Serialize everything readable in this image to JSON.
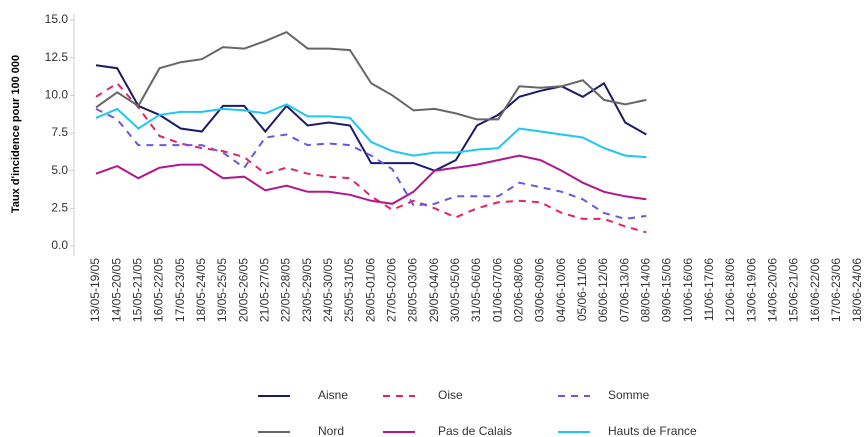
{
  "chart_data": {
    "type": "line",
    "y_label": "Taux d'incidence pour 100 000",
    "categories": [
      "13/05-19/05",
      "14/05-20/05",
      "15/05-21/05",
      "16/05-22/05",
      "17/05-23/05",
      "18/05-24/05",
      "19/05-25/05",
      "20/05-26/05",
      "21/05-27/05",
      "22/05-28/05",
      "23/05-29/05",
      "24/05-30/05",
      "25/05-31/05",
      "26/05-01/06",
      "27/05-02/06",
      "28/05-03/06",
      "29/05-04/06",
      "30/05-05/06",
      "31/05-06/06",
      "01/06-07/06",
      "02/06-08/06",
      "03/06-09/06",
      "04/06-10/06",
      "05/06-11/06",
      "06/06-12/06",
      "07/06-13/06",
      "08/06-14/06",
      "09/06-15/06",
      "10/06-16/06",
      "11/06-17/06",
      "12/06-18/06",
      "13/06-19/06",
      "14/06-20/06",
      "15/06-21/06",
      "16/06-22/06",
      "17/06-23/06",
      "18/06-24/06"
    ],
    "series": [
      {
        "name": "Aisne",
        "color": "#1c1a6b",
        "dashed": false,
        "values": [
          12.0,
          11.8,
          9.3,
          8.7,
          7.8,
          7.6,
          9.3,
          9.3,
          7.6,
          9.3,
          8.0,
          8.2,
          8.0,
          5.5,
          5.5,
          5.5,
          5.0,
          5.7,
          8.0,
          8.7,
          9.9,
          10.3,
          10.6,
          9.9,
          10.8,
          8.2,
          7.4,
          null,
          null,
          null,
          null,
          null,
          null,
          null,
          null,
          null,
          null
        ]
      },
      {
        "name": "Oise",
        "color": "#e2245f",
        "dashed": true,
        "values": [
          9.9,
          10.8,
          9.2,
          7.3,
          6.8,
          6.5,
          6.3,
          5.9,
          4.8,
          5.2,
          4.8,
          4.6,
          4.5,
          3.3,
          2.4,
          3.0,
          2.5,
          1.9,
          2.5,
          2.9,
          3.0,
          2.9,
          2.2,
          1.8,
          1.8,
          1.3,
          0.9,
          null,
          null,
          null,
          null,
          null,
          null,
          null,
          null,
          null,
          null
        ]
      },
      {
        "name": "Somme",
        "color": "#6a56e4",
        "dashed": true,
        "values": [
          9.1,
          8.4,
          6.7,
          6.7,
          6.7,
          6.7,
          6.2,
          5.2,
          7.2,
          7.4,
          6.7,
          6.8,
          6.7,
          6.0,
          5.1,
          2.7,
          2.8,
          3.3,
          3.3,
          3.3,
          4.2,
          3.9,
          3.6,
          3.1,
          2.2,
          1.8,
          2.0,
          null,
          null,
          null,
          null,
          null,
          null,
          null,
          null,
          null,
          null
        ]
      },
      {
        "name": "Nord",
        "color": "#666666",
        "dashed": false,
        "values": [
          9.2,
          10.2,
          9.3,
          11.8,
          12.2,
          12.4,
          13.2,
          13.1,
          13.6,
          14.2,
          13.1,
          13.1,
          13.0,
          10.8,
          10.0,
          9.0,
          9.1,
          8.8,
          8.4,
          8.4,
          10.6,
          10.5,
          10.6,
          11.0,
          9.7,
          9.4,
          9.7,
          null,
          null,
          null,
          null,
          null,
          null,
          null,
          null,
          null,
          null
        ]
      },
      {
        "name": "Pas de Calais",
        "color": "#b0178d",
        "dashed": false,
        "values": [
          4.8,
          5.3,
          4.5,
          5.2,
          5.4,
          5.4,
          4.5,
          4.6,
          3.7,
          4.0,
          3.6,
          3.6,
          3.4,
          3.0,
          2.8,
          3.6,
          5.0,
          5.2,
          5.4,
          5.7,
          6.0,
          5.7,
          5.0,
          4.2,
          3.6,
          3.3,
          3.1,
          null,
          null,
          null,
          null,
          null,
          null,
          null,
          null,
          null,
          null
        ]
      },
      {
        "name": "Hauts de France",
        "color": "#1ec6f1",
        "dashed": false,
        "values": [
          8.5,
          9.1,
          7.8,
          8.7,
          8.9,
          8.9,
          9.1,
          9.0,
          8.8,
          9.4,
          8.6,
          8.6,
          8.5,
          6.9,
          6.3,
          6.0,
          6.2,
          6.2,
          6.4,
          6.5,
          7.8,
          7.6,
          7.4,
          7.2,
          6.5,
          6.0,
          5.9,
          null,
          null,
          null,
          null,
          null,
          null,
          null,
          null,
          null,
          null
        ]
      }
    ],
    "ylim": [
      0,
      15
    ],
    "yticks": [
      {
        "value": 0,
        "label": "0.0"
      },
      {
        "value": 2.5,
        "label": "2.5"
      },
      {
        "value": 5,
        "label": "5.0"
      },
      {
        "value": 7.5,
        "label": "7.5"
      },
      {
        "value": 10,
        "label": "10.0"
      },
      {
        "value": 12.5,
        "label": "12.5"
      },
      {
        "value": 15,
        "label": "15.0"
      }
    ],
    "grid": false,
    "legend": "bottom"
  }
}
